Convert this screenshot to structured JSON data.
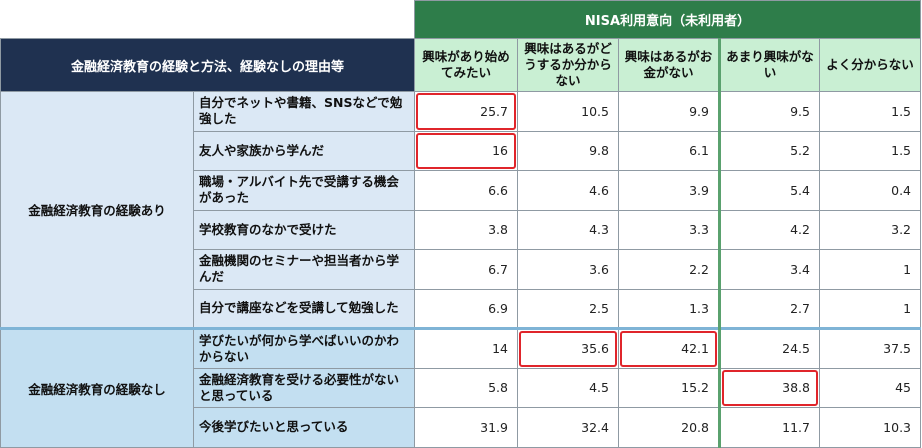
{
  "header": {
    "top": "NISA利用意向（未利用者）",
    "left": "金融経済教育の経験と方法、経験なしの理由等"
  },
  "columns": [
    "興味があり始めてみたい",
    "興味はあるがどうするか分からない",
    "興味はあるがお金がない",
    "あまり興味がない",
    "よく分からない"
  ],
  "groups": [
    {
      "label": "金融経済教育の経験あり",
      "rows": [
        {
          "label": "自分でネットや書籍、SNSなどで勉強した",
          "values": [
            "25.7",
            "10.5",
            "9.9",
            "9.5",
            "1.5"
          ],
          "highlight": [
            0
          ]
        },
        {
          "label": "友人や家族から学んだ",
          "values": [
            "16",
            "9.8",
            "6.1",
            "5.2",
            "1.5"
          ],
          "highlight": [
            0
          ]
        },
        {
          "label": "職場・アルバイト先で受講する機会があった",
          "values": [
            "6.6",
            "4.6",
            "3.9",
            "5.4",
            "0.4"
          ],
          "highlight": []
        },
        {
          "label": "学校教育のなかで受けた",
          "values": [
            "3.8",
            "4.3",
            "3.3",
            "4.2",
            "3.2"
          ],
          "highlight": []
        },
        {
          "label": "金融機関のセミナーや担当者から学んだ",
          "values": [
            "6.7",
            "3.6",
            "2.2",
            "3.4",
            "1"
          ],
          "highlight": []
        },
        {
          "label": "自分で講座などを受講して勉強した",
          "values": [
            "6.9",
            "2.5",
            "1.3",
            "2.7",
            "1"
          ],
          "highlight": []
        }
      ]
    },
    {
      "label": "金融経済教育の経験なし",
      "rows": [
        {
          "label": "学びたいが何から学べばいいのかわからない",
          "values": [
            "14",
            "35.6",
            "42.1",
            "24.5",
            "37.5"
          ],
          "highlight": [
            1,
            2
          ]
        },
        {
          "label": "金融経済教育を受ける必要性がないと思っている",
          "values": [
            "5.8",
            "4.5",
            "15.2",
            "38.8",
            "45"
          ],
          "highlight": [
            3
          ]
        },
        {
          "label": "今後学びたいと思っている",
          "values": [
            "31.9",
            "32.4",
            "20.8",
            "11.7",
            "10.3"
          ],
          "highlight": []
        }
      ]
    }
  ]
}
